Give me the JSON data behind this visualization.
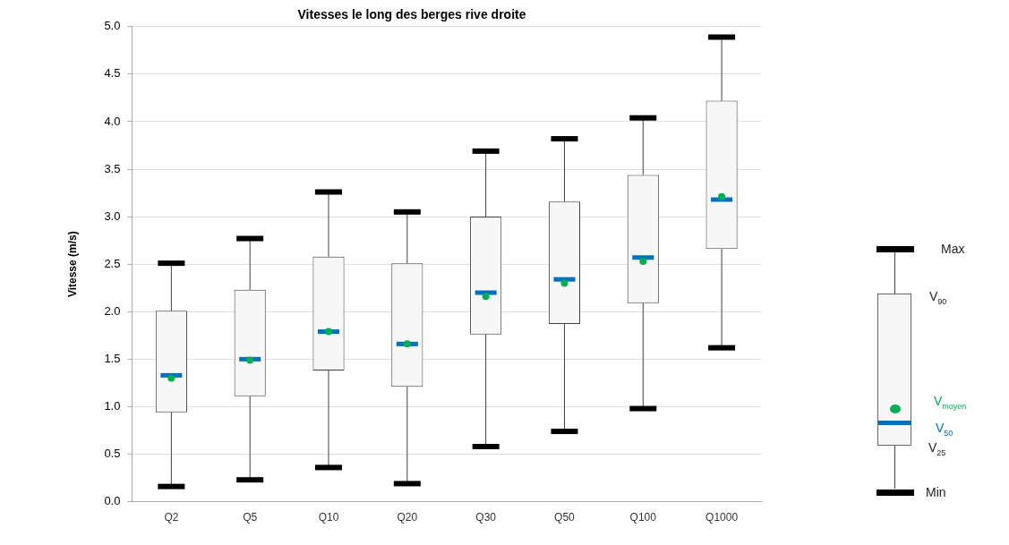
{
  "chart_data": {
    "type": "box",
    "title": "Vitesses le long des berges rive droite",
    "ylabel": "Vitesse (m/s)",
    "categories": [
      "Q2",
      "Q5",
      "Q10",
      "Q20",
      "Q30",
      "Q50",
      "Q100",
      "Q1000"
    ],
    "series": [
      {
        "color": "#404040",
        "boxes": [
          {
            "low": 0.16,
            "q1": 0.94,
            "median": 1.33,
            "q3": 2.01,
            "high": 2.51,
            "mean": 1.3
          },
          {
            "low": 0.23,
            "q1": 1.11,
            "median": 1.5,
            "q3": 2.23,
            "high": 2.77,
            "mean": 1.49
          },
          {
            "low": 0.36,
            "q1": 1.38,
            "median": 1.79,
            "q3": 2.58,
            "high": 3.26,
            "mean": 1.79
          },
          {
            "low": 0.19,
            "q1": 1.21,
            "median": 1.66,
            "q3": 2.51,
            "high": 3.05,
            "mean": 1.66
          },
          {
            "low": 0.58,
            "q1": 1.76,
            "median": 2.2,
            "q3": 3.0,
            "high": 3.69,
            "mean": 2.16
          },
          {
            "low": 0.74,
            "q1": 1.87,
            "median": 2.34,
            "q3": 3.16,
            "high": 3.82,
            "mean": 2.3
          },
          {
            "low": 0.98,
            "q1": 2.09,
            "median": 2.57,
            "q3": 3.44,
            "high": 4.04,
            "mean": 2.53
          },
          {
            "low": 1.62,
            "q1": 2.66,
            "median": 3.18,
            "q3": 4.22,
            "high": 4.89,
            "mean": 3.21
          }
        ]
      }
    ],
    "ylim": [
      0,
      5
    ],
    "yticks": [
      {
        "value": 0,
        "label": "0.0"
      },
      {
        "value": 0.5,
        "label": "0.5"
      },
      {
        "value": 1,
        "label": "1.0"
      },
      {
        "value": 1.5,
        "label": "1.5"
      },
      {
        "value": 2,
        "label": "2.0"
      },
      {
        "value": 2.5,
        "label": "2.5"
      },
      {
        "value": 3,
        "label": "3.0"
      },
      {
        "value": 3.5,
        "label": "3.5"
      },
      {
        "value": 4,
        "label": "4.0"
      },
      {
        "value": 4.5,
        "label": "4.5"
      },
      {
        "value": 5,
        "label": "5.0"
      }
    ],
    "grid": "y",
    "annotations": [
      "Max",
      "V$_{90}$",
      "V$_{moyen}$",
      "V$_{50}$",
      "V$_{25}$",
      "Min"
    ]
  }
}
